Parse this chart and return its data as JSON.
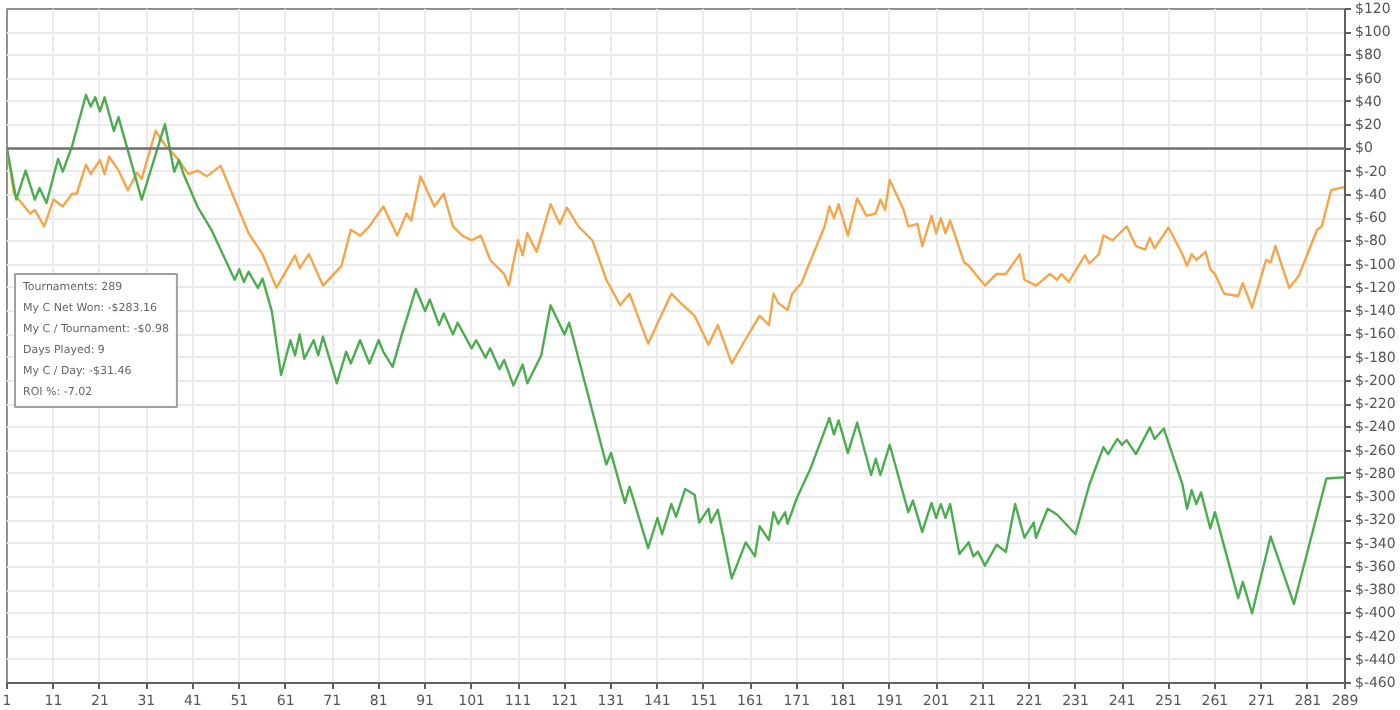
{
  "chart_data": {
    "type": "line",
    "annotations": [
      "Tournaments: 289",
      "My C Net Won: -$283.16",
      "My C / Tournament: -$0.98",
      "Days Played: 9",
      "My C / Day: -$31.46",
      "ROI %: -7.02"
    ],
    "xlim": [
      1,
      289
    ],
    "xticks": [
      1,
      11,
      21,
      31,
      41,
      51,
      61,
      71,
      81,
      91,
      101,
      111,
      121,
      131,
      141,
      151,
      161,
      171,
      181,
      191,
      201,
      211,
      221,
      231,
      241,
      251,
      261,
      271,
      281,
      289
    ],
    "ylim": [
      -460,
      120
    ],
    "yticks": [
      {
        "value": 120,
        "label": "$120"
      },
      {
        "value": 100,
        "label": "$100"
      },
      {
        "value": 80,
        "label": "$80"
      },
      {
        "value": 60,
        "label": "$60"
      },
      {
        "value": 40,
        "label": "$40"
      },
      {
        "value": 20,
        "label": "$20"
      },
      {
        "value": 0,
        "label": "$0"
      },
      {
        "value": -20,
        "label": "$-20"
      },
      {
        "value": -40,
        "label": "$-40"
      },
      {
        "value": -60,
        "label": "$-60"
      },
      {
        "value": -80,
        "label": "$-80"
      },
      {
        "value": -100,
        "label": "$-100"
      },
      {
        "value": -120,
        "label": "$-120"
      },
      {
        "value": -140,
        "label": "$-140"
      },
      {
        "value": -160,
        "label": "$-160"
      },
      {
        "value": -180,
        "label": "$-180"
      },
      {
        "value": -200,
        "label": "$-200"
      },
      {
        "value": -220,
        "label": "$-220"
      },
      {
        "value": -240,
        "label": "$-240"
      },
      {
        "value": -260,
        "label": "$-260"
      },
      {
        "value": -280,
        "label": "$-280"
      },
      {
        "value": -300,
        "label": "$-300"
      },
      {
        "value": -320,
        "label": "$-320"
      },
      {
        "value": -340,
        "label": "$-340"
      },
      {
        "value": -360,
        "label": "$-360"
      },
      {
        "value": -380,
        "label": "$-380"
      },
      {
        "value": -400,
        "label": "$-400"
      },
      {
        "value": -420,
        "label": "$-420"
      },
      {
        "value": -440,
        "label": "$-440"
      },
      {
        "value": -460,
        "label": "$-460"
      }
    ],
    "grid": true,
    "marker": "none",
    "line_style": "solid",
    "ref_lines": [
      {
        "axis": "y",
        "value": 0,
        "color": "#707070"
      }
    ],
    "series": [
      {
        "color": "#f5a54a",
        "x": [
          1,
          2.5,
          6,
          7,
          9,
          11,
          13,
          15,
          16,
          18,
          19,
          21,
          22,
          23,
          25,
          27,
          29,
          30,
          33,
          35,
          38,
          40,
          42,
          44,
          47,
          50,
          53,
          56,
          59,
          61,
          63,
          64,
          66,
          69,
          73,
          75,
          77,
          79,
          82,
          85,
          87,
          88,
          90,
          93,
          95,
          97,
          99,
          101,
          103,
          105,
          108,
          109,
          111,
          112,
          113,
          115,
          118,
          120,
          121.5,
          124,
          127,
          130,
          133,
          135,
          139,
          142,
          144,
          146,
          149,
          152,
          154,
          157,
          160,
          163,
          165,
          166,
          167,
          169,
          170,
          172,
          174,
          177,
          178,
          179,
          180,
          182,
          184,
          186,
          188,
          189,
          190,
          191,
          194,
          195,
          197,
          198,
          200,
          201,
          202,
          203,
          204,
          207,
          208,
          211.5,
          214,
          216,
          219,
          220,
          222.5,
          225.5,
          227,
          228,
          229.5,
          233,
          234,
          236,
          237,
          239,
          242,
          244,
          246,
          247,
          248,
          251,
          254,
          255,
          256,
          257,
          259,
          260,
          261,
          263,
          266,
          267,
          269,
          272,
          273,
          274,
          277,
          279,
          283,
          284,
          286,
          289
        ],
        "values": [
          0,
          -39,
          -56,
          -53,
          -67,
          -44,
          -50,
          -39,
          -39,
          -14,
          -22,
          -10,
          -22,
          -7,
          -19,
          -36,
          -21,
          -26,
          15,
          3,
          -10,
          -22,
          -19,
          -24,
          -15,
          -44,
          -73,
          -91,
          -120,
          -106,
          -92,
          -103,
          -91,
          -118,
          -101,
          -70,
          -75,
          -67,
          -50,
          -75,
          -56,
          -62,
          -24,
          -50,
          -39,
          -67,
          -75,
          -79,
          -75,
          -96,
          -108,
          -118,
          -79,
          -92,
          -73,
          -89,
          -48,
          -65,
          -51,
          -67,
          -79,
          -113,
          -135,
          -125,
          -168,
          -142,
          -125,
          -133,
          -144,
          -169,
          -152,
          -185,
          -164,
          -144,
          -152,
          -125,
          -133,
          -139,
          -125,
          -116,
          -96,
          -67,
          -50,
          -60,
          -48,
          -75,
          -43,
          -58,
          -56,
          -44,
          -53,
          -27,
          -53,
          -67,
          -65,
          -84,
          -58,
          -73,
          -60,
          -73,
          -62,
          -98,
          -101,
          -118,
          -108,
          -108,
          -91,
          -113,
          -118,
          -108,
          -113,
          -108,
          -115,
          -92,
          -99,
          -91,
          -75,
          -79,
          -67,
          -84,
          -87,
          -77,
          -86,
          -68,
          -91,
          -101,
          -91,
          -96,
          -89,
          -104,
          -108,
          -125,
          -127,
          -116,
          -137,
          -96,
          -98,
          -84,
          -120,
          -110,
          -70,
          -67,
          -36,
          -33
        ]
      },
      {
        "color": "#4cad50",
        "x": [
          1,
          3,
          5,
          7,
          8,
          9.5,
          12,
          13,
          15,
          18,
          19,
          20,
          21,
          22,
          24,
          25,
          30,
          35,
          37,
          38,
          39,
          42,
          45,
          50,
          51,
          52,
          53,
          55,
          56,
          58,
          60,
          62,
          63,
          64,
          65,
          67,
          68,
          69,
          72,
          74,
          75,
          77,
          79,
          81,
          82,
          84,
          86,
          89,
          91,
          92,
          94,
          95,
          97,
          98,
          101,
          102,
          104,
          105,
          107,
          108,
          110,
          112,
          113,
          116,
          118,
          121,
          122,
          130,
          131,
          134,
          135,
          139,
          141,
          142,
          144,
          145,
          147,
          149,
          150,
          152,
          152.5,
          154,
          157,
          160,
          162,
          163,
          165,
          166,
          167,
          168.5,
          169,
          171,
          174,
          178,
          179,
          180,
          182,
          184,
          187,
          188,
          189,
          191,
          195,
          196,
          198,
          200,
          201,
          202,
          203,
          204,
          206,
          208,
          209,
          210,
          211.5,
          214,
          216,
          218,
          220,
          222,
          222.5,
          225,
          227,
          231,
          234,
          237,
          238,
          240,
          241,
          242,
          244,
          247,
          248,
          250,
          254,
          255,
          256,
          257,
          258,
          260,
          261,
          266,
          267,
          269,
          273,
          278,
          285,
          289
        ],
        "values": [
          0,
          -44,
          -19,
          -44,
          -34,
          -47,
          -9,
          -20,
          2,
          46,
          36,
          44,
          32,
          44,
          15,
          27,
          -44,
          21,
          -20,
          -10,
          -22,
          -50,
          -70,
          -113,
          -104,
          -115,
          -106,
          -120,
          -112,
          -140,
          -195,
          -165,
          -178,
          -160,
          -181,
          -165,
          -178,
          -162,
          -202,
          -175,
          -185,
          -165,
          -185,
          -165,
          -175,
          -188,
          -160,
          -121,
          -140,
          -130,
          -152,
          -142,
          -160,
          -150,
          -172,
          -165,
          -180,
          -172,
          -190,
          -182,
          -204,
          -186,
          -202,
          -178,
          -135,
          -160,
          -150,
          -272,
          -262,
          -305,
          -291,
          -344,
          -318,
          -332,
          -306,
          -317,
          -293,
          -298,
          -322,
          -310,
          -322,
          -311,
          -370,
          -339,
          -351,
          -325,
          -337,
          -313,
          -323,
          -313,
          -323,
          -301,
          -275,
          -232,
          -246,
          -234,
          -262,
          -236,
          -281,
          -267,
          -281,
          -255,
          -313,
          -303,
          -330,
          -305,
          -318,
          -306,
          -318,
          -306,
          -349,
          -339,
          -351,
          -347,
          -359,
          -341,
          -347,
          -306,
          -335,
          -322,
          -335,
          -310,
          -315,
          -332,
          -289,
          -257,
          -263,
          -250,
          -255,
          -251,
          -263,
          -240,
          -250,
          -241,
          -289,
          -310,
          -294,
          -306,
          -296,
          -327,
          -313,
          -387,
          -373,
          -400,
          -334,
          -392,
          -284,
          -283
        ]
      }
    ]
  }
}
